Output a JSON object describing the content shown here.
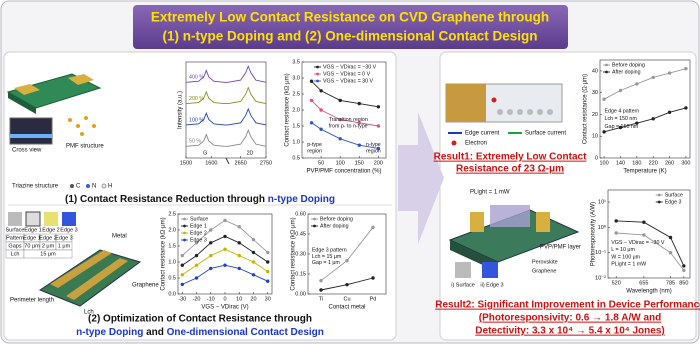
{
  "title": {
    "line1": "Extremely Low Contact Resistance on CVD Graphene through",
    "line2": "(1) n-type Doping and (2) One-dimensional Contact Design"
  },
  "doping": {
    "cross_view": "Cross view",
    "pmf_structure": "PMF structure",
    "triazine": "Triazine structure",
    "atoms": [
      "C",
      "N",
      "H"
    ],
    "caption": [
      "(1) Contact Resistance Reduction through ",
      "n-type Doping"
    ]
  },
  "edge": {
    "patterns": [
      "Surface",
      "Edge 1",
      "Edge 2",
      "Edge 3"
    ],
    "table": {
      "rows": [
        [
          "Pattern",
          "Edge 1",
          "Edge 2",
          "Edge 3"
        ],
        [
          "Gaps",
          "70 μm",
          "2 μm",
          "1 μm"
        ],
        [
          "Lch",
          "15 μm"
        ]
      ]
    },
    "metal": "Metal",
    "graphene": "Graphene",
    "perimeter": "Perimeter length",
    "lch": "Lch",
    "caption": [
      "(2) Optimization of Contact Resistance through",
      "n-type Doping",
      " and ",
      "One-dimensional Contact Design"
    ]
  },
  "result1": {
    "edge_current": "Edge current",
    "surface_current": "Surface current",
    "electron": "Electron",
    "lines": [
      "Result1: Extremely Low Contact",
      "Resistance of 23 Ω-μm"
    ]
  },
  "result2": {
    "light": "PLight = 1 mW",
    "layer": "PVP/PMF layer",
    "perovskite": "Perovskite",
    "graphene": "Graphene",
    "surface": "i) Surface",
    "edge": "ii) Edge 3",
    "lines": [
      "Result2: Significant Improvement in Device Performance",
      "(Photoresponsivity: 0.6 → 1.8 A/W and",
      "Detectivity: 3.3 x 10⁴ → 5.4 x 10⁴ Jones)"
    ]
  },
  "chart_data": [
    {
      "type": "line",
      "ylabel": "Intensity (a.u.)",
      "x": [
        1500,
        1550,
        1570,
        1580,
        1590,
        1610,
        1650,
        2600,
        2650,
        2670,
        2680,
        2690,
        2710,
        2750
      ],
      "xlim": [
        1500,
        2750
      ],
      "xbreak": [
        1650,
        2600
      ],
      "xticks": [
        1500,
        1600,
        2650,
        2750
      ],
      "ylim": [
        -0.5,
        4
      ],
      "markers": false,
      "series_labels": "inline",
      "series": [
        {
          "name": "400 %",
          "color": "#7a3fb0",
          "values": [
            3.05,
            3.1,
            3.3,
            3.6,
            3.3,
            3.1,
            3.05,
            3.05,
            3.15,
            3.5,
            3.8,
            3.5,
            3.15,
            3.05
          ]
        },
        {
          "name": "200 %",
          "color": "#8a8a20",
          "values": [
            2.05,
            2.1,
            2.3,
            2.6,
            2.3,
            2.1,
            2.05,
            2.05,
            2.15,
            2.5,
            2.8,
            2.5,
            2.15,
            2.05
          ]
        },
        {
          "name": "100 %",
          "color": "#2040c0",
          "values": [
            1.05,
            1.1,
            1.3,
            1.6,
            1.3,
            1.1,
            1.05,
            1.05,
            1.15,
            1.5,
            1.8,
            1.5,
            1.15,
            1.05
          ]
        },
        {
          "name": "50 %",
          "color": "#888888",
          "values": [
            0.05,
            0.1,
            0.3,
            0.6,
            0.3,
            0.1,
            0.05,
            0.05,
            0.15,
            0.5,
            0.8,
            0.5,
            0.15,
            0.05
          ]
        }
      ],
      "annotations": [
        "G",
        "2D"
      ]
    },
    {
      "type": "line",
      "xlabel": "PVP/PMF concentration (%)",
      "ylabel": "Contact resistance (kΩ·μm)",
      "x": [
        25,
        50,
        100,
        150,
        200
      ],
      "xlim": [
        0,
        220
      ],
      "xticks": [
        50,
        100,
        150,
        200
      ],
      "ylim": [
        0.5,
        3.5
      ],
      "yticks": [
        0.5,
        {
          "value": 1,
          "label": "1.0"
        },
        1.5,
        {
          "value": 2,
          "label": "2.0"
        },
        2.5,
        {
          "value": 3,
          "label": "3.0"
        },
        3.5
      ],
      "legend": "upper right",
      "series": [
        {
          "name": "VGS − VDirac = −30 V",
          "color": "#222222",
          "values": [
            2.9,
            2.6,
            2.3,
            2.2,
            2.1
          ]
        },
        {
          "name": "VGS − VDirac = 0 V",
          "color": "#e0507a",
          "values": [
            2.3,
            2.0,
            1.7,
            1.6,
            1.5
          ]
        },
        {
          "name": "VGS − VDirac = 30 V",
          "color": "#2a55d0",
          "values": [
            1.6,
            1.4,
            1.1,
            0.9,
            0.8
          ]
        }
      ],
      "annotations": [
        "Transition region",
        "from p- to n-type",
        "p-type",
        "region",
        "n-type",
        "region"
      ]
    },
    {
      "type": "line",
      "xlabel": "VGS − VDirac (V)",
      "ylabel": "Contact resistance (kΩ·μm)",
      "x": [
        -30,
        -20,
        -10,
        0,
        10,
        20,
        30
      ],
      "xlim": [
        -33,
        33
      ],
      "xticks": [
        -30,
        -20,
        -10,
        0,
        10,
        20,
        30
      ],
      "ylim": [
        0,
        2.5
      ],
      "yticks": [
        {
          "value": 0,
          "label": "0.0"
        },
        0.5,
        {
          "value": 1,
          "label": "1.0"
        },
        1.5,
        {
          "value": 2,
          "label": "2.0"
        },
        2.5
      ],
      "legend": "upper left",
      "series": [
        {
          "name": "Surface",
          "color": "#999999",
          "values": [
            1.2,
            1.6,
            2.0,
            2.3,
            2.1,
            1.7,
            1.3
          ]
        },
        {
          "name": "Edge 1",
          "color": "#222222",
          "values": [
            0.9,
            1.2,
            1.6,
            1.8,
            1.6,
            1.3,
            1.0
          ]
        },
        {
          "name": "Edge 2",
          "color": "#c8b400",
          "values": [
            0.6,
            0.9,
            1.2,
            1.4,
            1.2,
            1.0,
            0.7
          ]
        },
        {
          "name": "Edge 3",
          "color": "#1f3fd0",
          "values": [
            0.3,
            0.5,
            0.8,
            0.9,
            0.8,
            0.6,
            0.4
          ]
        }
      ]
    },
    {
      "type": "line",
      "xlabel": "Contact metal",
      "ylabel": "Contact resistance (kΩ·μm)",
      "categories": [
        "Ti",
        "Cu",
        "Pd"
      ],
      "ylim": [
        0,
        0.6
      ],
      "yticks": [
        {
          "value": 0,
          "label": "0.00"
        },
        0.15,
        {
          "value": 0.3,
          "label": "0.30"
        },
        0.45,
        {
          "value": 0.6,
          "label": "0.60"
        }
      ],
      "legend": "upper left",
      "series": [
        {
          "name": "Before doping",
          "color": "#999999",
          "values": [
            0.1,
            0.25,
            0.5
          ]
        },
        {
          "name": "After doping",
          "color": "#222222",
          "values": [
            0.03,
            0.07,
            0.12
          ]
        }
      ],
      "annotations": [
        "Edge 3 pattern",
        "Lch = 15 μm",
        "Gap = 1 μm"
      ]
    },
    {
      "type": "line",
      "xlabel": "Temperature (K)",
      "ylabel": "Contact resistance (Ω·μm)",
      "x": [
        100,
        140,
        180,
        220,
        260,
        300
      ],
      "xlim": [
        90,
        310
      ],
      "xticks": [
        100,
        140,
        180,
        220,
        260,
        300
      ],
      "ylim": [
        0,
        45
      ],
      "yticks": [
        0,
        10,
        20,
        30,
        40
      ],
      "legend": "upper left",
      "series": [
        {
          "name": "Before doping",
          "color": "#999999",
          "values": [
            27,
            31,
            34,
            37,
            39,
            41
          ]
        },
        {
          "name": "After doping",
          "color": "#222222",
          "values": [
            12,
            14,
            16,
            18,
            21,
            23
          ]
        }
      ],
      "annotations": [
        "Edge 4 pattern",
        "Lch = 150 nm",
        "Gap = 150 nm"
      ]
    },
    {
      "type": "line",
      "xlabel": "Wavelength (nm)",
      "ylabel": "Photoresponsivity (A/W)",
      "x": [
        520,
        655,
        785,
        850
      ],
      "xlim": [
        480,
        880
      ],
      "xticks": [
        520,
        655,
        785,
        850
      ],
      "ylog": true,
      "ylim": [
        0.01,
        30
      ],
      "yticks": [
        {
          "value": 0.01,
          "label": "10⁻²"
        },
        {
          "value": 0.1,
          "label": "10⁻¹"
        },
        {
          "value": 1,
          "label": "10⁰"
        },
        {
          "value": 10,
          "label": "10¹"
        }
      ],
      "legend": "upper right",
      "series": [
        {
          "name": "Surface",
          "color": "#999999",
          "values": [
            0.6,
            0.5,
            0.1,
            0.02
          ]
        },
        {
          "name": "Edge 3",
          "color": "#222222",
          "values": [
            1.8,
            1.6,
            0.4,
            0.03
          ]
        }
      ],
      "annotations": [
        "VGS − VDirac = −30 V",
        "L = 10 μm",
        "W = 100 μm",
        "PLight = 1 mW"
      ]
    }
  ]
}
